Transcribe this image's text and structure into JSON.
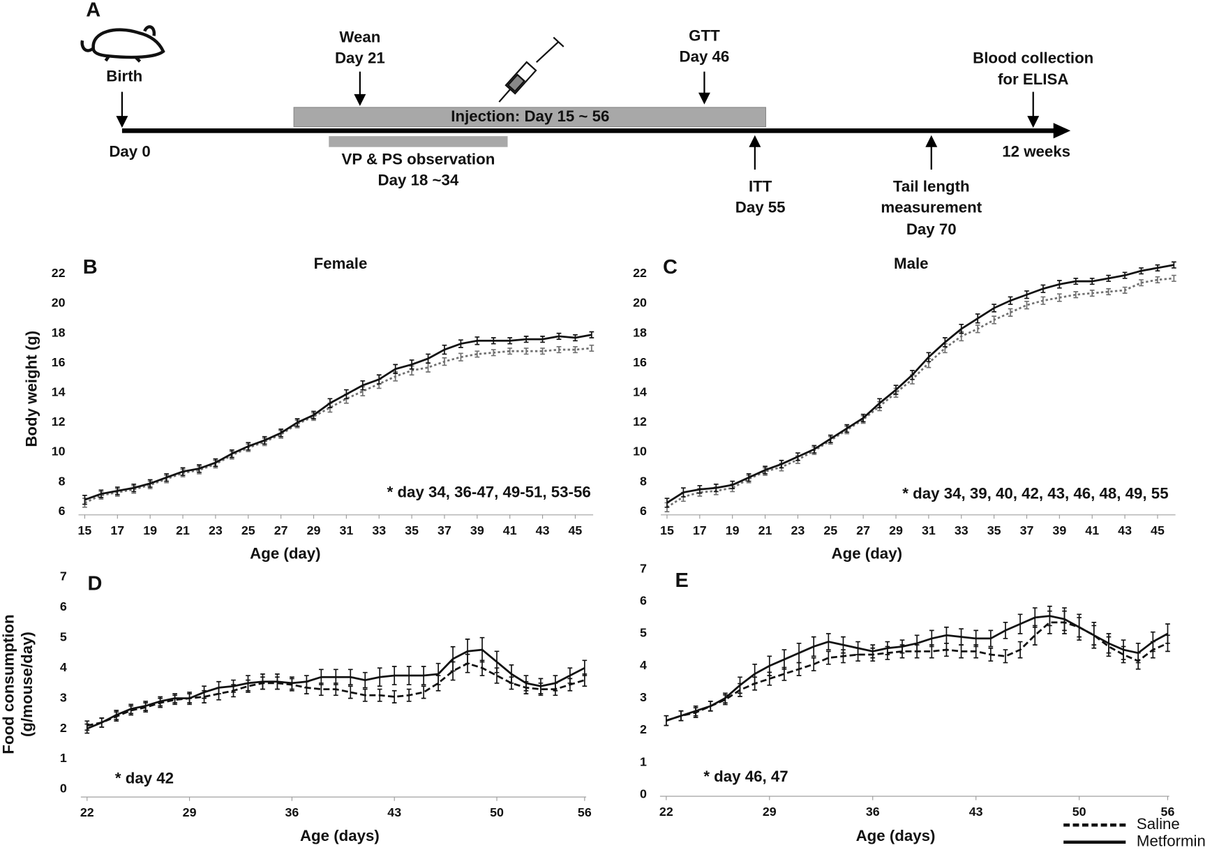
{
  "timeline": {
    "panel": "A",
    "birth": "Birth",
    "day0": "Day 0",
    "wean": [
      "Wean",
      "Day 21"
    ],
    "gtt": [
      "GTT",
      "Day 46"
    ],
    "blood": [
      "Blood collection",
      "for ELISA"
    ],
    "end": "12 weeks",
    "injection": "Injection: Day 15 ~ 56",
    "observation": [
      "VP & PS observation",
      "Day 18 ~34"
    ],
    "itt": [
      "ITT",
      "Day 55"
    ],
    "tail": [
      "Tail length",
      "measurement",
      "Day 70"
    ]
  },
  "chart_data": [
    {
      "type": "line",
      "panel": "B",
      "title": "Female",
      "xlabel": "Age (day)",
      "ylabel": [
        "Body weight (g)"
      ],
      "annotation": "* day 34, 36-47, 49-51, 53-56",
      "x": [
        15,
        16,
        17,
        18,
        19,
        20,
        21,
        22,
        23,
        24,
        25,
        26,
        27,
        28,
        29,
        30,
        31,
        32,
        33,
        34,
        35,
        36,
        37,
        38,
        39,
        40,
        41,
        42,
        43,
        44,
        45,
        46
      ],
      "xlim": [
        15,
        46
      ],
      "xticks": [
        15,
        17,
        19,
        21,
        23,
        25,
        27,
        29,
        31,
        33,
        35,
        37,
        39,
        41,
        43,
        45
      ],
      "ylim": [
        6,
        23
      ],
      "yticks": [
        6,
        8,
        10,
        12,
        14,
        16,
        18,
        20,
        22
      ],
      "series": [
        {
          "color": "#707070",
          "dash": "3,3",
          "values": [
            6.6,
            7.1,
            7.3,
            7.5,
            7.8,
            8.2,
            8.6,
            8.8,
            9.2,
            9.8,
            10.3,
            10.7,
            11.2,
            11.9,
            12.4,
            13.0,
            13.6,
            14.1,
            14.6,
            15.1,
            15.5,
            15.7,
            16.1,
            16.4,
            16.6,
            16.7,
            16.8,
            16.8,
            16.8,
            16.9,
            16.9,
            17.0
          ],
          "errors": [
            0.3,
            0.25,
            0.25,
            0.25,
            0.25,
            0.25,
            0.25,
            0.25,
            0.25,
            0.25,
            0.25,
            0.25,
            0.25,
            0.25,
            0.25,
            0.3,
            0.3,
            0.3,
            0.3,
            0.3,
            0.3,
            0.3,
            0.25,
            0.25,
            0.2,
            0.2,
            0.2,
            0.2,
            0.2,
            0.2,
            0.2,
            0.2
          ]
        },
        {
          "color": "#111111",
          "dash": "none",
          "values": [
            6.8,
            7.2,
            7.4,
            7.6,
            7.9,
            8.3,
            8.7,
            8.9,
            9.3,
            9.9,
            10.4,
            10.8,
            11.3,
            12.0,
            12.5,
            13.3,
            13.9,
            14.5,
            14.9,
            15.6,
            15.9,
            16.3,
            16.9,
            17.3,
            17.5,
            17.5,
            17.5,
            17.6,
            17.6,
            17.8,
            17.7,
            17.9
          ],
          "errors": [
            0.3,
            0.25,
            0.25,
            0.25,
            0.25,
            0.25,
            0.25,
            0.25,
            0.25,
            0.25,
            0.25,
            0.25,
            0.25,
            0.25,
            0.25,
            0.3,
            0.3,
            0.3,
            0.3,
            0.3,
            0.3,
            0.3,
            0.3,
            0.25,
            0.25,
            0.2,
            0.2,
            0.2,
            0.2,
            0.2,
            0.2,
            0.2
          ]
        }
      ]
    },
    {
      "type": "line",
      "panel": "C",
      "title": "Male",
      "xlabel": "Age (day)",
      "annotation": "* day 34, 39, 40, 42, 43, 46, 48, 49, 55",
      "x": [
        15,
        16,
        17,
        18,
        19,
        20,
        21,
        22,
        23,
        24,
        25,
        26,
        27,
        28,
        29,
        30,
        31,
        32,
        33,
        34,
        35,
        36,
        37,
        38,
        39,
        40,
        41,
        42,
        43,
        44,
        45,
        46
      ],
      "xlim": [
        15,
        46
      ],
      "xticks": [
        15,
        17,
        19,
        21,
        23,
        25,
        27,
        29,
        31,
        33,
        35,
        37,
        39,
        41,
        43,
        45
      ],
      "ylim": [
        6,
        23
      ],
      "yticks": [
        6,
        8,
        10,
        12,
        14,
        16,
        18,
        20,
        22
      ],
      "series": [
        {
          "color": "#707070",
          "dash": "3,3",
          "values": [
            6.3,
            7.0,
            7.3,
            7.4,
            7.6,
            8.2,
            8.7,
            9.0,
            9.5,
            10.1,
            10.8,
            11.5,
            12.2,
            13.1,
            14.0,
            14.9,
            16.0,
            17.0,
            17.8,
            18.3,
            18.9,
            19.4,
            19.9,
            20.2,
            20.4,
            20.6,
            20.7,
            20.8,
            20.9,
            21.4,
            21.6,
            21.7
          ],
          "errors": [
            0.3,
            0.3,
            0.25,
            0.25,
            0.25,
            0.25,
            0.25,
            0.25,
            0.25,
            0.25,
            0.25,
            0.25,
            0.25,
            0.3,
            0.3,
            0.3,
            0.3,
            0.3,
            0.3,
            0.25,
            0.25,
            0.25,
            0.25,
            0.25,
            0.25,
            0.2,
            0.2,
            0.2,
            0.2,
            0.2,
            0.2,
            0.2
          ]
        },
        {
          "color": "#111111",
          "dash": "none",
          "values": [
            6.6,
            7.3,
            7.5,
            7.6,
            7.8,
            8.3,
            8.8,
            9.2,
            9.7,
            10.2,
            10.9,
            11.6,
            12.3,
            13.3,
            14.2,
            15.2,
            16.4,
            17.4,
            18.3,
            19.0,
            19.7,
            20.2,
            20.6,
            21.0,
            21.3,
            21.5,
            21.5,
            21.7,
            21.9,
            22.2,
            22.4,
            22.6
          ],
          "errors": [
            0.3,
            0.3,
            0.25,
            0.25,
            0.25,
            0.25,
            0.25,
            0.25,
            0.25,
            0.25,
            0.25,
            0.25,
            0.25,
            0.3,
            0.3,
            0.3,
            0.3,
            0.3,
            0.3,
            0.3,
            0.25,
            0.25,
            0.25,
            0.25,
            0.25,
            0.2,
            0.2,
            0.2,
            0.2,
            0.2,
            0.2,
            0.2
          ]
        }
      ]
    },
    {
      "type": "line",
      "panel": "D",
      "xlabel": "Age (days)",
      "ylabel": [
        "Food consumption",
        "(g/mouse/day)"
      ],
      "annotation": "* day 42",
      "x": [
        22,
        23,
        24,
        25,
        26,
        27,
        28,
        29,
        30,
        31,
        32,
        33,
        34,
        35,
        36,
        37,
        38,
        39,
        40,
        41,
        42,
        43,
        44,
        45,
        46,
        47,
        48,
        49,
        50,
        51,
        52,
        53,
        54,
        55,
        56
      ],
      "xlim": [
        22,
        56
      ],
      "xticks": [
        22,
        29,
        36,
        43,
        50,
        56
      ],
      "ylim": [
        0,
        7
      ],
      "yticks": [
        0,
        1,
        2,
        3,
        4,
        5,
        6,
        7
      ],
      "series": [
        {
          "color": "#111111",
          "dash": "8,4",
          "values": [
            2.1,
            2.2,
            2.4,
            2.6,
            2.7,
            2.85,
            2.95,
            3.0,
            3.05,
            3.15,
            3.25,
            3.4,
            3.5,
            3.5,
            3.45,
            3.35,
            3.3,
            3.3,
            3.2,
            3.1,
            3.1,
            3.05,
            3.1,
            3.2,
            3.5,
            3.9,
            4.15,
            4.0,
            3.75,
            3.5,
            3.35,
            3.3,
            3.3,
            3.45,
            3.6
          ],
          "errors": [
            0.15,
            0.15,
            0.15,
            0.15,
            0.15,
            0.15,
            0.15,
            0.15,
            0.2,
            0.2,
            0.2,
            0.2,
            0.2,
            0.2,
            0.2,
            0.2,
            0.2,
            0.2,
            0.2,
            0.2,
            0.2,
            0.2,
            0.2,
            0.2,
            0.25,
            0.3,
            0.3,
            0.25,
            0.25,
            0.2,
            0.2,
            0.2,
            0.2,
            0.2,
            0.2
          ]
        },
        {
          "color": "#111111",
          "dash": "none",
          "values": [
            2.0,
            2.2,
            2.45,
            2.65,
            2.75,
            2.9,
            3.0,
            3.0,
            3.2,
            3.35,
            3.4,
            3.5,
            3.55,
            3.55,
            3.5,
            3.55,
            3.7,
            3.7,
            3.7,
            3.6,
            3.7,
            3.75,
            3.75,
            3.75,
            3.8,
            4.3,
            4.55,
            4.6,
            4.2,
            3.8,
            3.5,
            3.4,
            3.5,
            3.75,
            4.0
          ],
          "errors": [
            0.15,
            0.15,
            0.15,
            0.15,
            0.15,
            0.15,
            0.15,
            0.2,
            0.2,
            0.2,
            0.2,
            0.25,
            0.25,
            0.25,
            0.2,
            0.2,
            0.25,
            0.25,
            0.25,
            0.25,
            0.3,
            0.3,
            0.3,
            0.3,
            0.35,
            0.4,
            0.4,
            0.4,
            0.35,
            0.3,
            0.25,
            0.25,
            0.25,
            0.25,
            0.25
          ]
        }
      ]
    },
    {
      "type": "line",
      "panel": "E",
      "xlabel": "Age (days)",
      "annotation": "* day 46, 47",
      "x": [
        22,
        23,
        24,
        25,
        26,
        27,
        28,
        29,
        30,
        31,
        32,
        33,
        34,
        35,
        36,
        37,
        38,
        39,
        40,
        41,
        42,
        43,
        44,
        45,
        46,
        47,
        48,
        49,
        50,
        51,
        52,
        53,
        54,
        55,
        56
      ],
      "xlim": [
        22,
        56
      ],
      "xticks": [
        22,
        29,
        36,
        43,
        50,
        56
      ],
      "ylim": [
        0,
        7
      ],
      "yticks": [
        0,
        1,
        2,
        3,
        4,
        5,
        6,
        7
      ],
      "series": [
        {
          "name": "Saline",
          "color": "#111111",
          "dash": "8,4",
          "values": [
            2.3,
            2.45,
            2.55,
            2.75,
            2.95,
            3.25,
            3.45,
            3.6,
            3.75,
            3.9,
            4.05,
            4.25,
            4.3,
            4.35,
            4.35,
            4.4,
            4.45,
            4.45,
            4.45,
            4.5,
            4.45,
            4.45,
            4.35,
            4.3,
            4.5,
            4.95,
            5.35,
            5.35,
            5.2,
            4.95,
            4.6,
            4.35,
            4.15,
            4.5,
            4.7
          ],
          "errors": [
            0.15,
            0.15,
            0.15,
            0.15,
            0.15,
            0.2,
            0.2,
            0.2,
            0.2,
            0.2,
            0.2,
            0.2,
            0.2,
            0.2,
            0.2,
            0.2,
            0.2,
            0.2,
            0.2,
            0.2,
            0.2,
            0.2,
            0.2,
            0.2,
            0.25,
            0.3,
            0.35,
            0.35,
            0.3,
            0.3,
            0.3,
            0.25,
            0.25,
            0.25,
            0.25
          ]
        },
        {
          "name": "Metformin",
          "color": "#111111",
          "dash": "none",
          "values": [
            2.3,
            2.45,
            2.6,
            2.75,
            3.0,
            3.4,
            3.75,
            4.0,
            4.2,
            4.4,
            4.6,
            4.75,
            4.65,
            4.55,
            4.45,
            4.55,
            4.6,
            4.7,
            4.85,
            4.95,
            4.9,
            4.85,
            4.85,
            5.1,
            5.3,
            5.5,
            5.55,
            5.45,
            5.2,
            4.95,
            4.7,
            4.5,
            4.4,
            4.75,
            5.0
          ],
          "errors": [
            0.15,
            0.15,
            0.15,
            0.15,
            0.15,
            0.25,
            0.3,
            0.3,
            0.3,
            0.3,
            0.3,
            0.25,
            0.25,
            0.2,
            0.2,
            0.2,
            0.2,
            0.25,
            0.25,
            0.25,
            0.25,
            0.25,
            0.25,
            0.25,
            0.3,
            0.3,
            0.3,
            0.35,
            0.4,
            0.4,
            0.3,
            0.3,
            0.3,
            0.3,
            0.3
          ]
        }
      ]
    }
  ]
}
